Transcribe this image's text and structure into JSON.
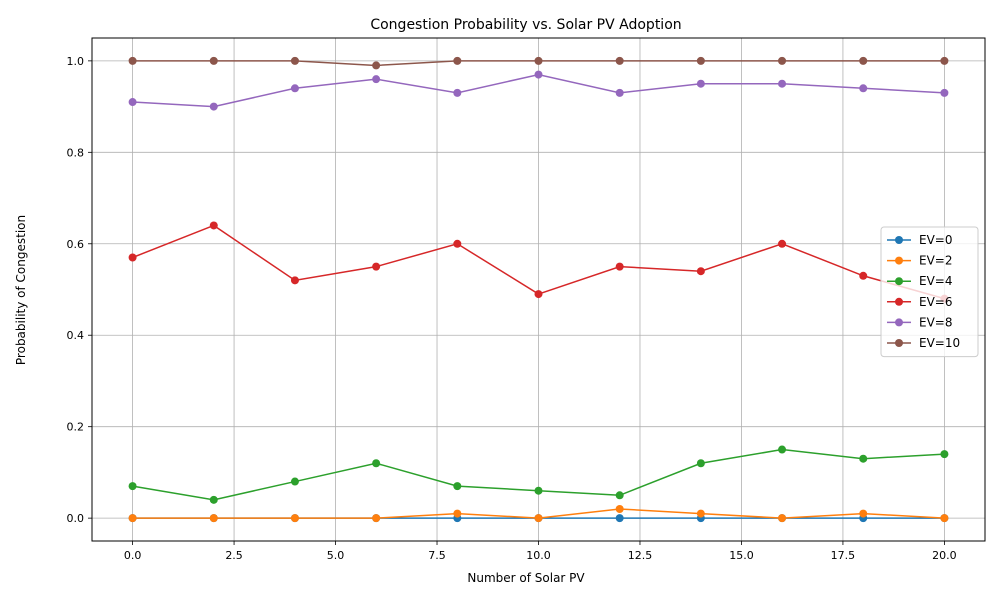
{
  "chart_data": {
    "type": "line",
    "title": "Congestion Probability vs. Solar PV Adoption",
    "xlabel": "Number of Solar PV",
    "ylabel": "Probability of Congestion",
    "xlim": [
      -1,
      21
    ],
    "ylim": [
      -0.05,
      1.05
    ],
    "x_ticks": [
      "0.0",
      "2.5",
      "5.0",
      "7.5",
      "10.0",
      "12.5",
      "15.0",
      "17.5",
      "20.0"
    ],
    "x_tick_values": [
      0,
      2.5,
      5,
      7.5,
      10,
      12.5,
      15,
      17.5,
      20
    ],
    "y_ticks": [
      "0.0",
      "0.2",
      "0.4",
      "0.6",
      "0.8",
      "1.0"
    ],
    "y_tick_values": [
      0,
      0.2,
      0.4,
      0.6,
      0.8,
      1.0
    ],
    "grid": true,
    "legend_position": "center-right",
    "x": [
      0,
      2,
      4,
      6,
      8,
      10,
      12,
      14,
      16,
      18,
      20
    ],
    "series": [
      {
        "name": "EV=0",
        "color": "#1f77b4",
        "values": [
          0,
          0,
          0,
          0,
          0,
          0,
          0,
          0,
          0,
          0,
          0
        ]
      },
      {
        "name": "EV=2",
        "color": "#ff7f0e",
        "values": [
          0,
          0,
          0,
          0,
          0.01,
          0,
          0.02,
          0.01,
          0,
          0.01,
          0
        ]
      },
      {
        "name": "EV=4",
        "color": "#2ca02c",
        "values": [
          0.07,
          0.04,
          0.08,
          0.12,
          0.07,
          0.06,
          0.05,
          0.12,
          0.15,
          0.13,
          0.14
        ]
      },
      {
        "name": "EV=6",
        "color": "#d62728",
        "values": [
          0.57,
          0.64,
          0.52,
          0.55,
          0.6,
          0.49,
          0.55,
          0.54,
          0.6,
          0.53,
          0.48
        ]
      },
      {
        "name": "EV=8",
        "color": "#9467bd",
        "values": [
          0.91,
          0.9,
          0.94,
          0.96,
          0.93,
          0.97,
          0.93,
          0.95,
          0.95,
          0.94,
          0.93
        ]
      },
      {
        "name": "EV=10",
        "color": "#8c564b",
        "values": [
          1.0,
          1.0,
          1.0,
          0.99,
          1.0,
          1.0,
          1.0,
          1.0,
          1.0,
          1.0,
          1.0
        ]
      }
    ]
  }
}
